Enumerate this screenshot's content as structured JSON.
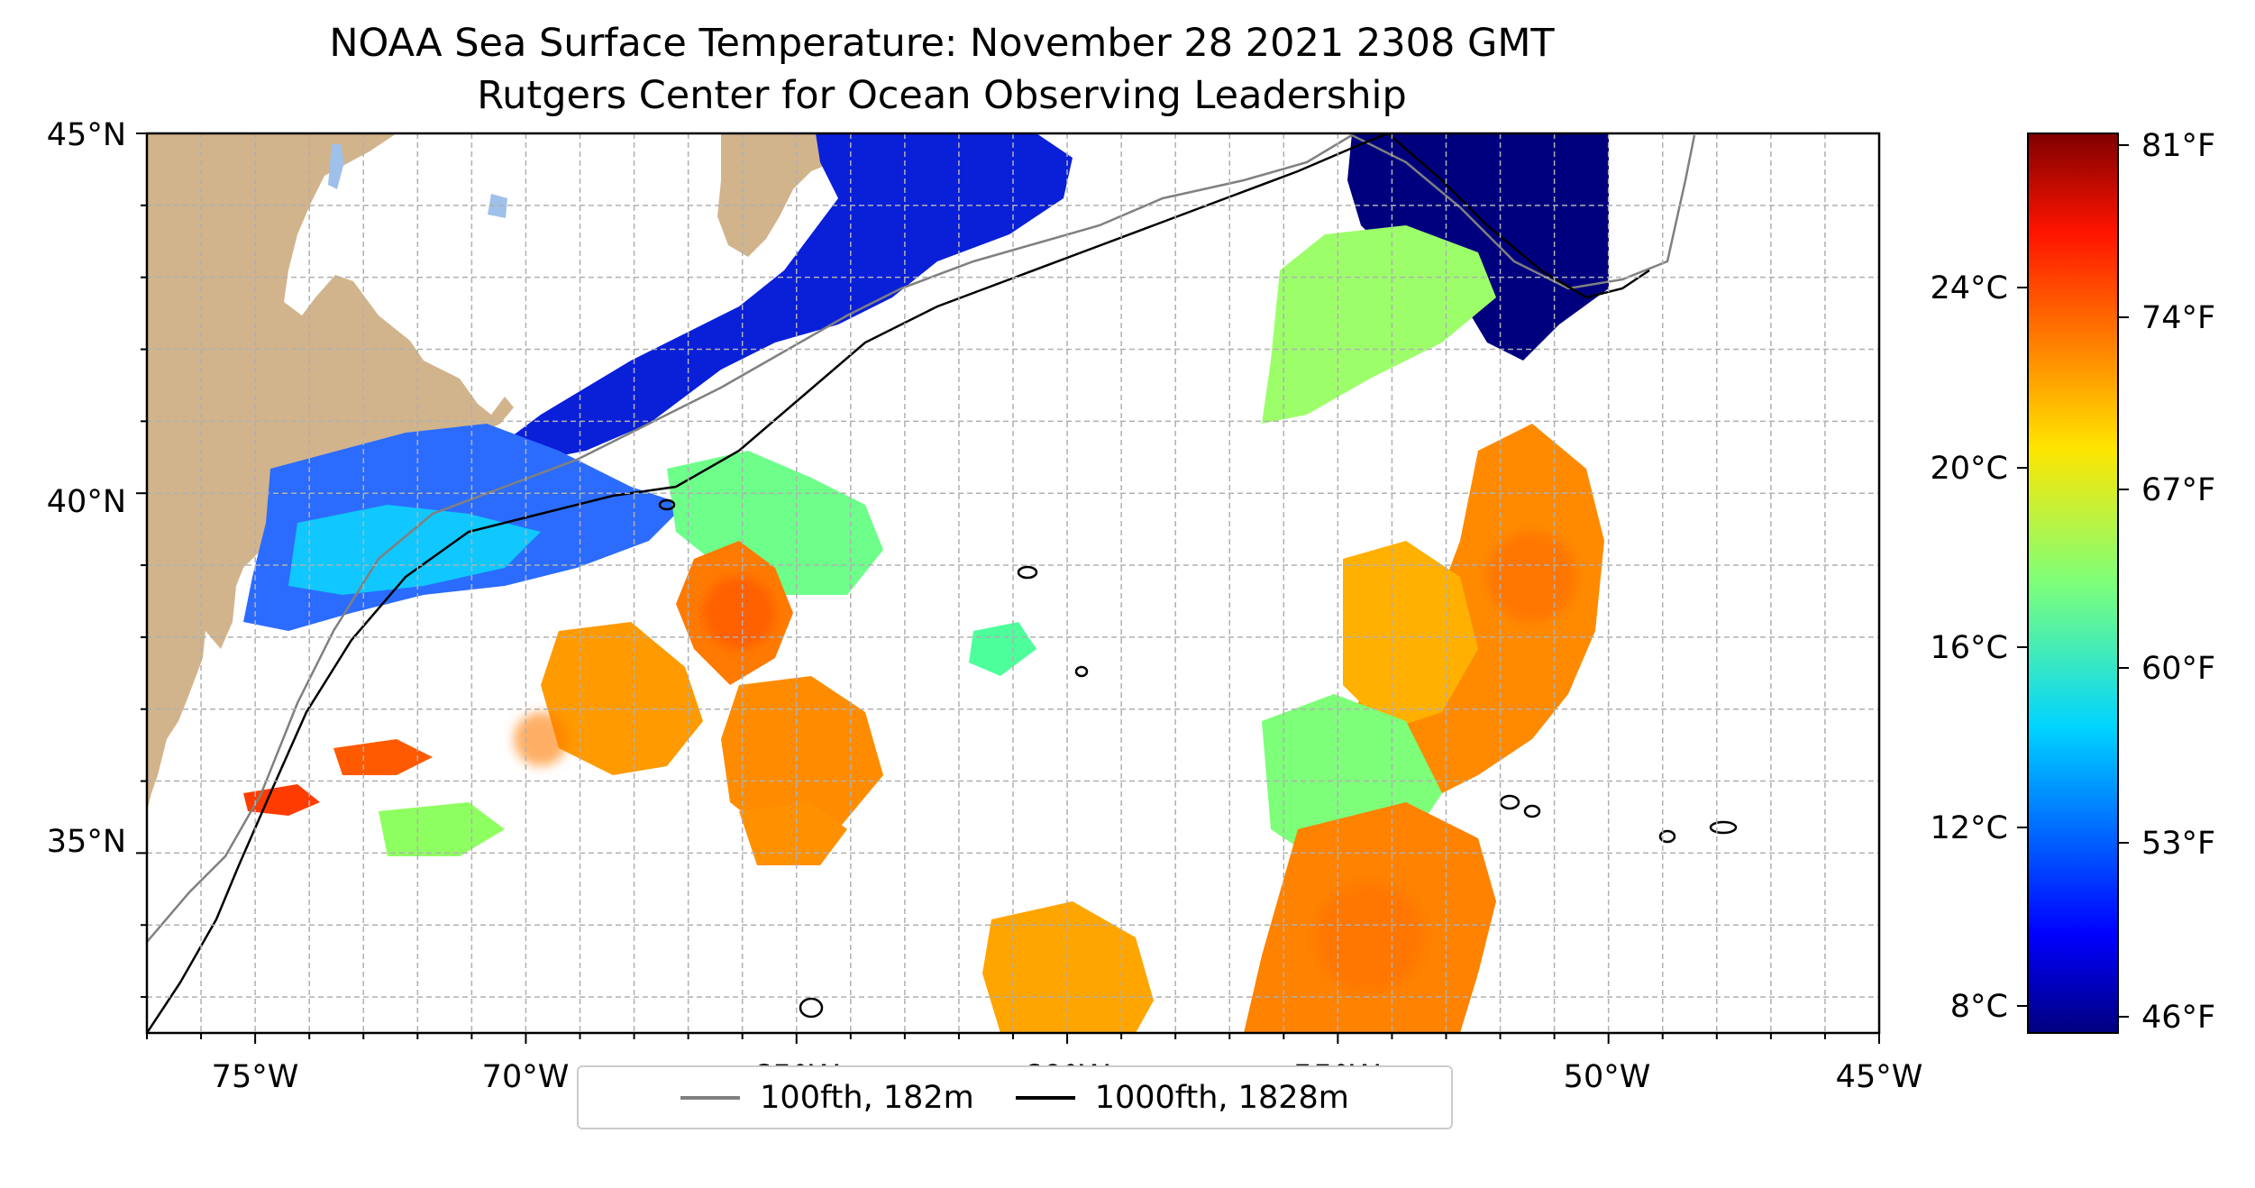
{
  "title": {
    "line1": "NOAA Sea Surface Temperature: November 28 2021 2308 GMT",
    "line2": "Rutgers Center for Ocean Observing Leadership"
  },
  "map": {
    "lon_range": [
      -77,
      -45
    ],
    "lat_range": [
      32.5,
      45
    ],
    "x_tick_labels": [
      "75°W",
      "70°W",
      "65°W",
      "60°W",
      "55°W",
      "50°W",
      "45°W"
    ],
    "y_tick_labels": [
      "35°N",
      "40°N",
      "45°N"
    ],
    "land_color": "#d2b48c",
    "lake_color": "#9fc0e8",
    "grid": true
  },
  "colorbar": {
    "colormap": "jet",
    "fahrenheit_labels": [
      "81°F",
      "74°F",
      "67°F",
      "60°F",
      "53°F",
      "46°F"
    ],
    "celsius_labels": [
      "24°C",
      "20°C",
      "16°C",
      "12°C",
      "8°C"
    ]
  },
  "legend": {
    "items": [
      {
        "label": "100fth, 182m",
        "color": "#808080"
      },
      {
        "label": "1000fth, 1828m",
        "color": "#000000"
      }
    ]
  }
}
